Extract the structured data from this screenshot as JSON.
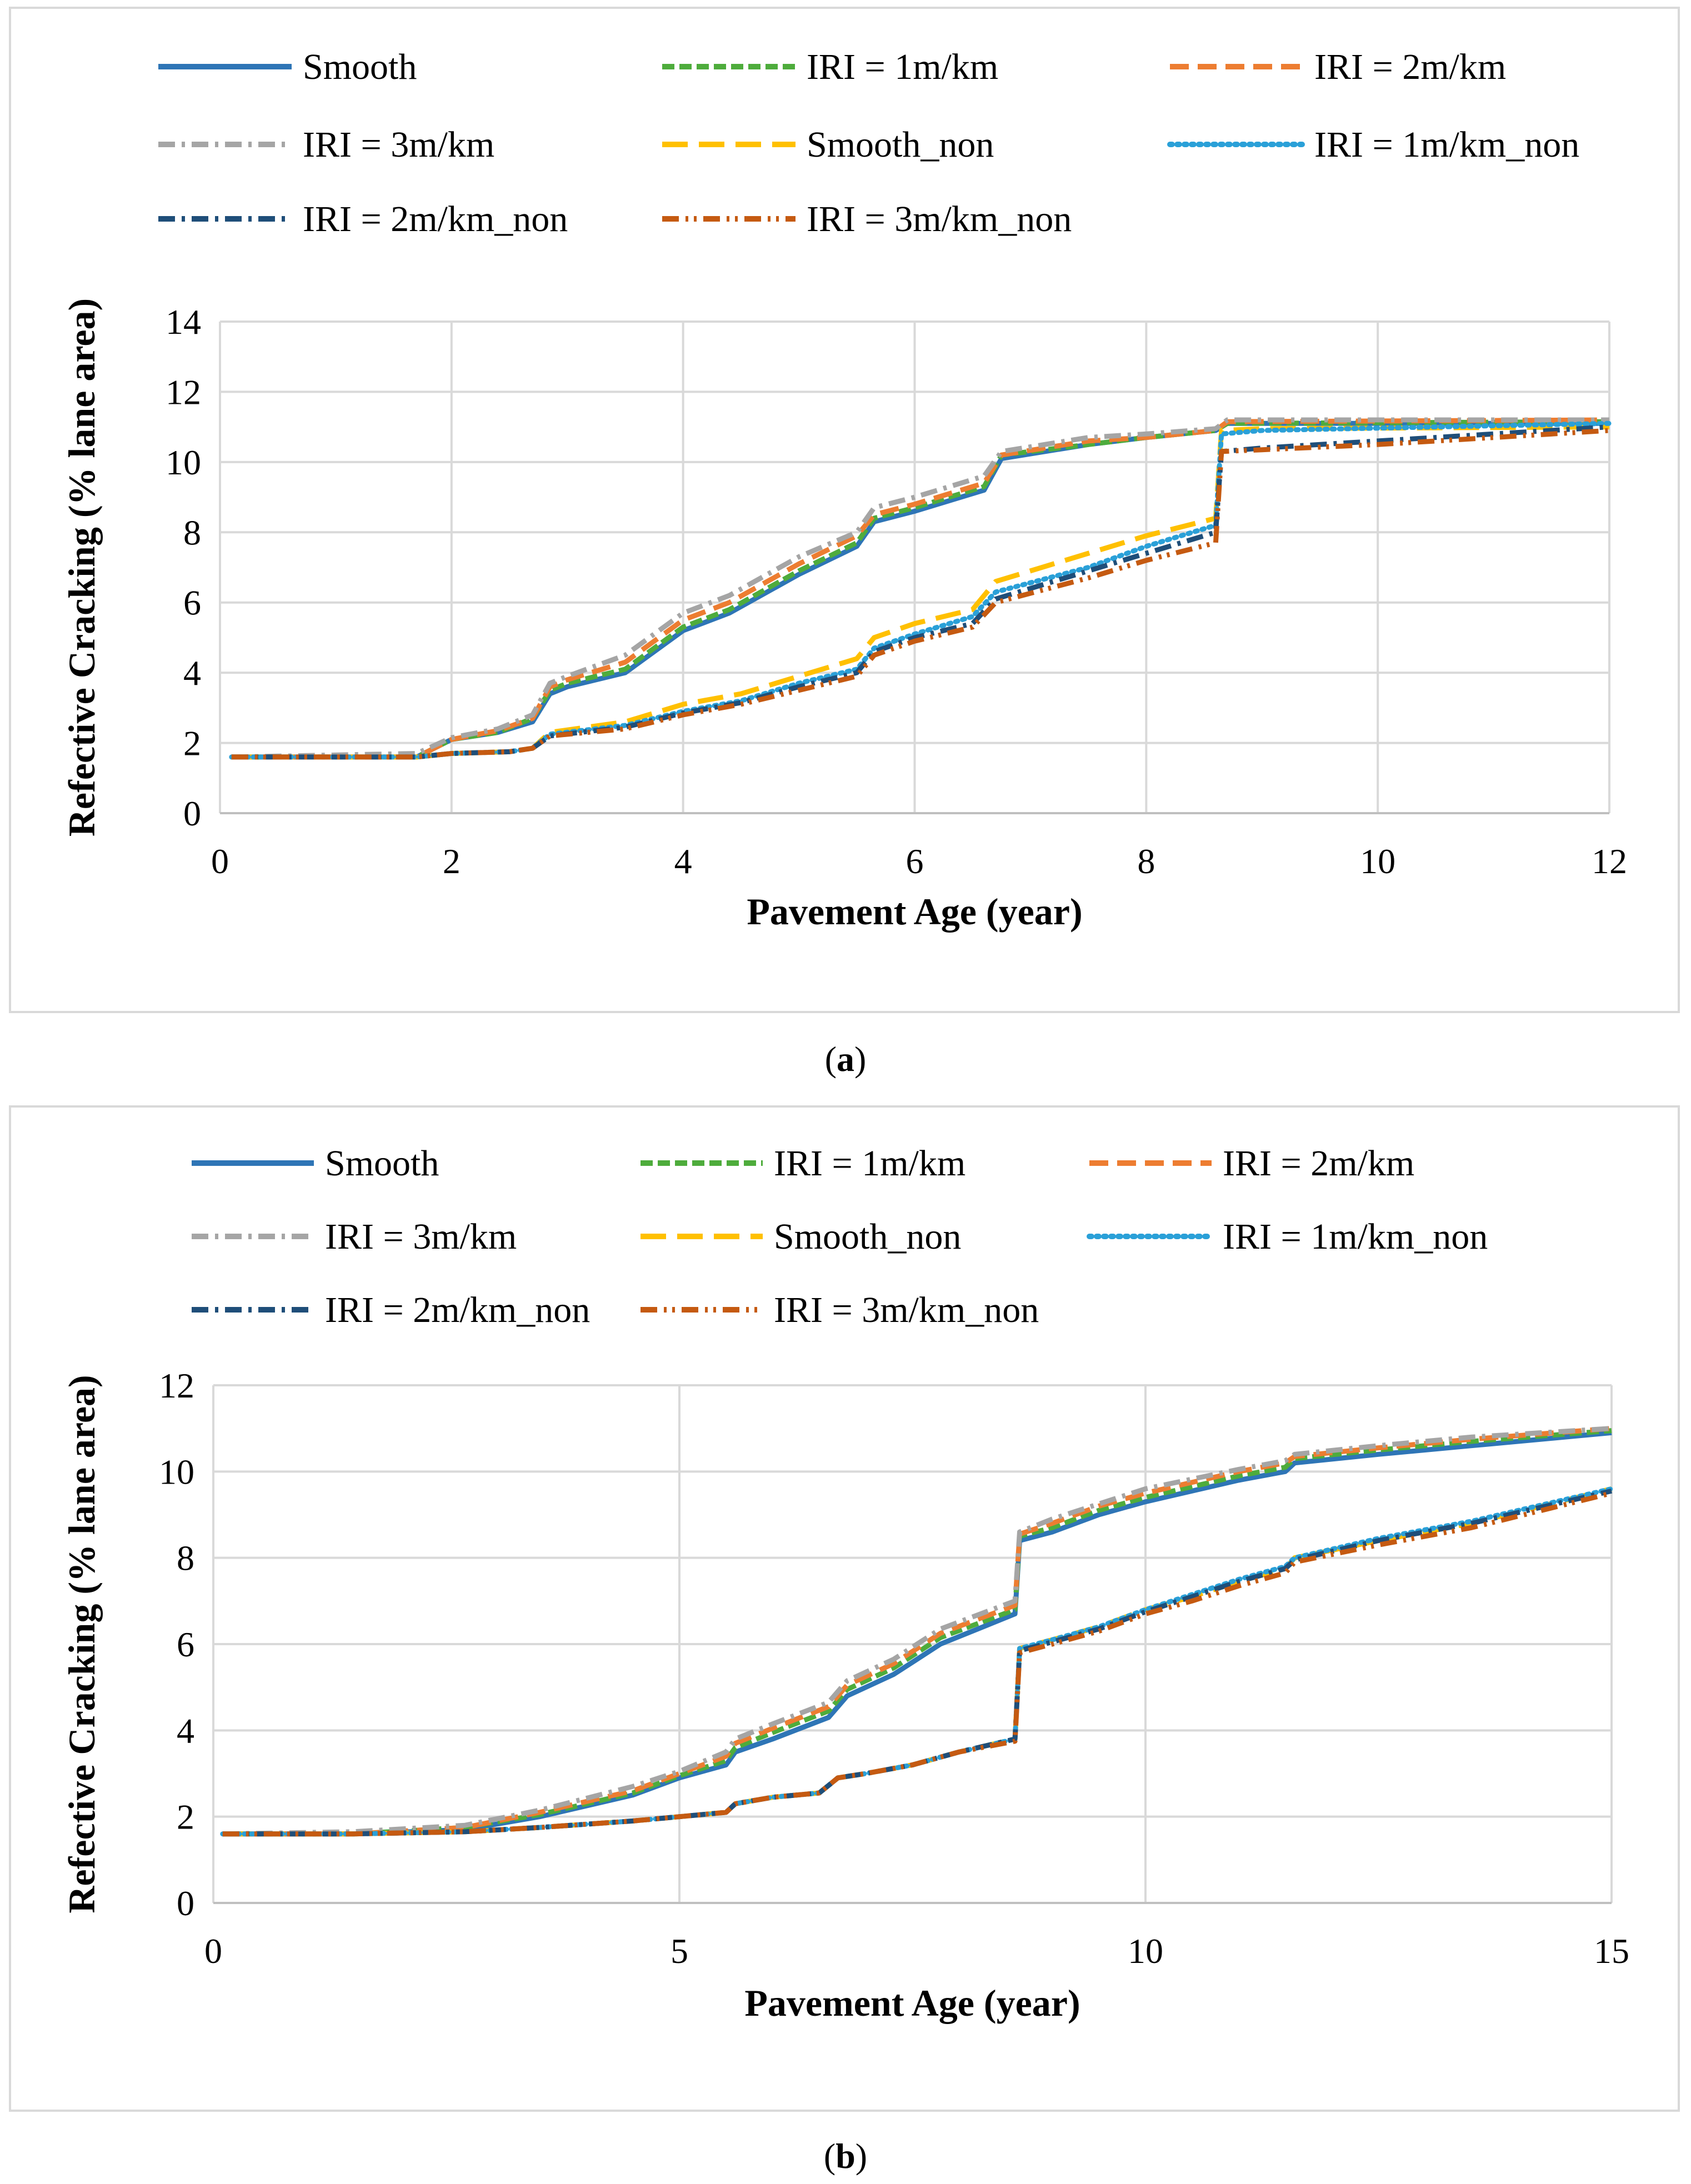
{
  "captions": {
    "a_open": "(",
    "a_letter": "a",
    "a_close": ")",
    "b_open": "(",
    "b_letter": "b",
    "b_close": ")"
  },
  "chart_data": [
    {
      "panel": "a",
      "type": "line",
      "title": "",
      "xlabel": "Pavement Age (year)",
      "ylabel": "Refective Cracking (% lane area)",
      "xlim": [
        0,
        12
      ],
      "ylim": [
        0,
        14
      ],
      "xticks": [
        0,
        2,
        4,
        6,
        8,
        10,
        12
      ],
      "yticks": [
        0,
        2,
        4,
        6,
        8,
        10,
        12,
        14
      ],
      "grid": true,
      "legend_position": "top",
      "series": [
        {
          "name": "Smooth",
          "color": "#2e75b6",
          "dash": "solid",
          "x": [
            0.1,
            1.7,
            2.0,
            2.4,
            2.7,
            2.85,
            3.0,
            3.5,
            4.0,
            4.4,
            5.0,
            5.5,
            5.65,
            6.0,
            6.6,
            6.75,
            7.5,
            8.0,
            8.6,
            8.7,
            12.0
          ],
          "y": [
            1.6,
            1.6,
            2.1,
            2.3,
            2.6,
            3.4,
            3.6,
            4.0,
            5.2,
            5.7,
            6.8,
            7.6,
            8.3,
            8.6,
            9.2,
            10.1,
            10.5,
            10.7,
            10.9,
            11.1,
            11.1
          ]
        },
        {
          "name": "IRI = 1m/km",
          "color": "#4eac3c",
          "dash": "medium",
          "x": [
            0.1,
            1.7,
            2.0,
            2.4,
            2.7,
            2.85,
            3.0,
            3.5,
            4.0,
            4.4,
            5.0,
            5.5,
            5.65,
            6.0,
            6.6,
            6.75,
            7.5,
            8.0,
            8.6,
            8.7,
            12.0
          ],
          "y": [
            1.6,
            1.6,
            2.1,
            2.3,
            2.7,
            3.5,
            3.7,
            4.1,
            5.3,
            5.8,
            6.9,
            7.7,
            8.4,
            8.7,
            9.3,
            10.2,
            10.5,
            10.7,
            10.9,
            11.1,
            11.15
          ]
        },
        {
          "name": "IRI = 2m/km",
          "color": "#ed7d31",
          "dash": "long",
          "x": [
            0.1,
            1.7,
            2.0,
            2.4,
            2.7,
            2.85,
            3.0,
            3.5,
            4.0,
            4.4,
            5.0,
            5.5,
            5.65,
            6.0,
            6.6,
            6.75,
            7.5,
            8.0,
            8.6,
            8.7,
            12.0
          ],
          "y": [
            1.6,
            1.6,
            2.1,
            2.35,
            2.7,
            3.6,
            3.8,
            4.3,
            5.5,
            6.0,
            7.1,
            7.9,
            8.5,
            8.8,
            9.4,
            10.2,
            10.6,
            10.7,
            10.9,
            11.15,
            11.2
          ]
        },
        {
          "name": "IRI = 3m/km",
          "color": "#a5a5a5",
          "dash": "dashdot",
          "x": [
            0.1,
            1.7,
            2.0,
            2.4,
            2.7,
            2.85,
            3.0,
            3.5,
            4.0,
            4.4,
            5.0,
            5.5,
            5.65,
            6.0,
            6.6,
            6.75,
            7.5,
            8.0,
            8.6,
            8.7,
            12.0
          ],
          "y": [
            1.6,
            1.7,
            2.15,
            2.4,
            2.8,
            3.7,
            3.9,
            4.5,
            5.7,
            6.2,
            7.3,
            8.0,
            8.7,
            9.0,
            9.6,
            10.3,
            10.7,
            10.8,
            10.95,
            11.2,
            11.2
          ]
        },
        {
          "name": "Smooth_non",
          "color": "#ffc000",
          "dash": "longdash",
          "x": [
            0.1,
            1.7,
            2.0,
            2.5,
            2.7,
            2.85,
            3.5,
            4.0,
            4.5,
            5.0,
            5.5,
            5.65,
            6.0,
            6.5,
            6.7,
            7.5,
            8.0,
            8.6,
            8.65,
            9.0,
            12.0
          ],
          "y": [
            1.6,
            1.6,
            1.7,
            1.75,
            1.85,
            2.3,
            2.6,
            3.1,
            3.4,
            3.9,
            4.4,
            5.0,
            5.4,
            5.8,
            6.6,
            7.4,
            7.9,
            8.4,
            10.9,
            10.95,
            11.0
          ]
        },
        {
          "name": "IRI = 1m/km_non",
          "color": "#2aa0d8",
          "dash": "dot",
          "x": [
            0.1,
            1.7,
            2.0,
            2.5,
            2.7,
            2.85,
            3.5,
            4.0,
            4.5,
            5.0,
            5.5,
            5.65,
            6.0,
            6.5,
            6.7,
            7.5,
            8.0,
            8.6,
            8.65,
            9.0,
            12.0
          ],
          "y": [
            1.6,
            1.6,
            1.7,
            1.75,
            1.85,
            2.25,
            2.5,
            2.9,
            3.2,
            3.7,
            4.1,
            4.7,
            5.1,
            5.6,
            6.3,
            7.0,
            7.6,
            8.2,
            10.8,
            10.9,
            11.1
          ]
        },
        {
          "name": "IRI = 2m/km_non",
          "color": "#1f4e79",
          "dash": "dashdot",
          "x": [
            0.1,
            1.7,
            2.0,
            2.5,
            2.7,
            2.85,
            3.5,
            4.0,
            4.5,
            5.0,
            5.5,
            5.65,
            6.0,
            6.5,
            6.7,
            7.5,
            8.0,
            8.6,
            8.65,
            9.0,
            10.0,
            12.0
          ],
          "y": [
            1.6,
            1.6,
            1.7,
            1.75,
            1.85,
            2.2,
            2.45,
            2.85,
            3.15,
            3.6,
            4.0,
            4.6,
            5.0,
            5.4,
            6.1,
            6.9,
            7.4,
            8.0,
            10.3,
            10.4,
            10.6,
            11.0
          ]
        },
        {
          "name": "IRI = 3m/km_non",
          "color": "#c55a11",
          "dash": "dashdotdot",
          "x": [
            0.1,
            1.7,
            2.0,
            2.5,
            2.7,
            2.85,
            3.5,
            4.0,
            4.5,
            5.0,
            5.5,
            5.65,
            6.0,
            6.5,
            6.7,
            7.5,
            8.0,
            8.6,
            8.65,
            9.0,
            10.0,
            12.0
          ],
          "y": [
            1.6,
            1.6,
            1.7,
            1.75,
            1.85,
            2.2,
            2.4,
            2.8,
            3.1,
            3.5,
            3.9,
            4.5,
            4.9,
            5.3,
            6.0,
            6.7,
            7.2,
            7.7,
            10.3,
            10.35,
            10.5,
            10.9
          ]
        }
      ]
    },
    {
      "panel": "b",
      "type": "line",
      "title": "",
      "xlabel": "Pavement Age (year)",
      "ylabel": "Refective Cracking (% lane area)",
      "xlim": [
        0,
        15
      ],
      "ylim": [
        0,
        12
      ],
      "xticks": [
        0,
        5,
        10,
        15
      ],
      "yticks": [
        0,
        2,
        4,
        6,
        8,
        10,
        12
      ],
      "grid": true,
      "legend_position": "top",
      "series": [
        {
          "name": "Smooth",
          "color": "#2e75b6",
          "dash": "solid",
          "x": [
            0.1,
            1.5,
            2.7,
            3.5,
            4.5,
            5.0,
            5.5,
            5.6,
            6.0,
            6.6,
            6.8,
            7.3,
            7.8,
            8.6,
            8.65,
            9.0,
            9.5,
            10.0,
            11.0,
            11.5,
            11.6,
            12.5,
            13.5,
            15.0
          ],
          "y": [
            1.6,
            1.6,
            1.7,
            2.0,
            2.5,
            2.9,
            3.2,
            3.5,
            3.8,
            4.3,
            4.8,
            5.3,
            6.0,
            6.7,
            8.4,
            8.6,
            9.0,
            9.3,
            9.8,
            10.0,
            10.2,
            10.4,
            10.6,
            10.9
          ]
        },
        {
          "name": "IRI = 1m/km",
          "color": "#4eac3c",
          "dash": "medium",
          "x": [
            0.1,
            1.5,
            2.7,
            3.5,
            4.5,
            5.0,
            5.5,
            5.6,
            6.0,
            6.6,
            6.8,
            7.3,
            7.8,
            8.6,
            8.65,
            9.0,
            9.5,
            10.0,
            11.0,
            11.5,
            11.6,
            12.5,
            13.5,
            15.0
          ],
          "y": [
            1.6,
            1.6,
            1.75,
            2.05,
            2.55,
            2.95,
            3.3,
            3.6,
            3.95,
            4.45,
            4.95,
            5.45,
            6.15,
            6.8,
            8.5,
            8.7,
            9.1,
            9.4,
            9.9,
            10.1,
            10.3,
            10.5,
            10.7,
            10.95
          ]
        },
        {
          "name": "IRI = 2m/km",
          "color": "#ed7d31",
          "dash": "long",
          "x": [
            0.1,
            1.5,
            2.7,
            3.5,
            4.5,
            5.0,
            5.5,
            5.6,
            6.0,
            6.6,
            6.8,
            7.3,
            7.8,
            8.6,
            8.65,
            9.0,
            9.5,
            10.0,
            11.0,
            11.5,
            11.6,
            12.5,
            13.5,
            15.0
          ],
          "y": [
            1.6,
            1.6,
            1.75,
            2.1,
            2.6,
            3.0,
            3.4,
            3.7,
            4.05,
            4.55,
            5.05,
            5.55,
            6.25,
            6.9,
            8.55,
            8.8,
            9.2,
            9.5,
            10.0,
            10.2,
            10.35,
            10.55,
            10.75,
            11.0
          ]
        },
        {
          "name": "IRI = 3m/km",
          "color": "#a5a5a5",
          "dash": "dashdot",
          "x": [
            0.1,
            1.5,
            2.7,
            3.5,
            4.5,
            5.0,
            5.5,
            5.6,
            6.0,
            6.6,
            6.8,
            7.3,
            7.8,
            8.6,
            8.65,
            9.0,
            9.5,
            10.0,
            11.0,
            11.5,
            11.6,
            12.5,
            13.5,
            15.0
          ],
          "y": [
            1.6,
            1.65,
            1.8,
            2.15,
            2.7,
            3.05,
            3.5,
            3.8,
            4.15,
            4.65,
            5.15,
            5.65,
            6.35,
            7.0,
            8.6,
            8.9,
            9.25,
            9.6,
            10.05,
            10.25,
            10.4,
            10.6,
            10.8,
            11.0
          ]
        },
        {
          "name": "Smooth_non",
          "color": "#ffc000",
          "dash": "longdash",
          "x": [
            0.1,
            1.5,
            2.7,
            3.5,
            4.5,
            5.0,
            5.5,
            5.6,
            6.0,
            6.5,
            6.7,
            7.0,
            7.5,
            8.0,
            8.6,
            8.65,
            9.0,
            9.5,
            10.0,
            10.5,
            11.0,
            11.5,
            11.6,
            12.5,
            13.5,
            15.0
          ],
          "y": [
            1.6,
            1.6,
            1.65,
            1.75,
            1.9,
            2.0,
            2.1,
            2.3,
            2.45,
            2.55,
            2.9,
            3.0,
            3.2,
            3.5,
            3.8,
            5.9,
            6.1,
            6.4,
            6.8,
            7.1,
            7.45,
            7.75,
            8.0,
            8.4,
            8.8,
            9.6
          ]
        },
        {
          "name": "IRI = 1m/km_non",
          "color": "#2aa0d8",
          "dash": "dot",
          "x": [
            0.1,
            1.5,
            2.7,
            3.5,
            4.5,
            5.0,
            5.5,
            5.6,
            6.0,
            6.5,
            6.7,
            7.0,
            7.5,
            8.0,
            8.6,
            8.65,
            9.0,
            9.5,
            10.0,
            10.5,
            11.0,
            11.5,
            11.6,
            12.5,
            13.5,
            15.0
          ],
          "y": [
            1.6,
            1.6,
            1.65,
            1.75,
            1.9,
            2.0,
            2.1,
            2.3,
            2.45,
            2.55,
            2.9,
            3.0,
            3.2,
            3.5,
            3.8,
            5.9,
            6.1,
            6.4,
            6.8,
            7.15,
            7.5,
            7.8,
            8.0,
            8.45,
            8.85,
            9.6
          ]
        },
        {
          "name": "IRI = 2m/km_non",
          "color": "#1f4e79",
          "dash": "dashdot",
          "x": [
            0.1,
            1.5,
            2.7,
            3.5,
            4.5,
            5.0,
            5.5,
            5.6,
            6.0,
            6.5,
            6.7,
            7.0,
            7.5,
            8.0,
            8.6,
            8.65,
            9.0,
            9.5,
            10.0,
            10.5,
            11.0,
            11.5,
            11.6,
            12.5,
            13.5,
            15.0
          ],
          "y": [
            1.6,
            1.6,
            1.65,
            1.75,
            1.9,
            2.0,
            2.1,
            2.3,
            2.45,
            2.55,
            2.9,
            3.0,
            3.2,
            3.5,
            3.8,
            5.85,
            6.05,
            6.35,
            6.75,
            7.1,
            7.45,
            7.75,
            7.95,
            8.4,
            8.8,
            9.55
          ]
        },
        {
          "name": "IRI = 3m/km_non",
          "color": "#c55a11",
          "dash": "dashdotdot",
          "x": [
            0.1,
            1.5,
            2.7,
            3.5,
            4.5,
            5.0,
            5.5,
            5.6,
            6.0,
            6.5,
            6.7,
            7.0,
            7.5,
            8.0,
            8.6,
            8.65,
            9.0,
            9.5,
            10.0,
            10.5,
            11.0,
            11.5,
            11.6,
            12.5,
            13.5,
            15.0
          ],
          "y": [
            1.6,
            1.6,
            1.65,
            1.75,
            1.9,
            2.0,
            2.1,
            2.3,
            2.45,
            2.55,
            2.9,
            3.0,
            3.2,
            3.5,
            3.75,
            5.8,
            6.0,
            6.3,
            6.7,
            7.0,
            7.35,
            7.65,
            7.9,
            8.3,
            8.7,
            9.5
          ]
        }
      ]
    }
  ]
}
